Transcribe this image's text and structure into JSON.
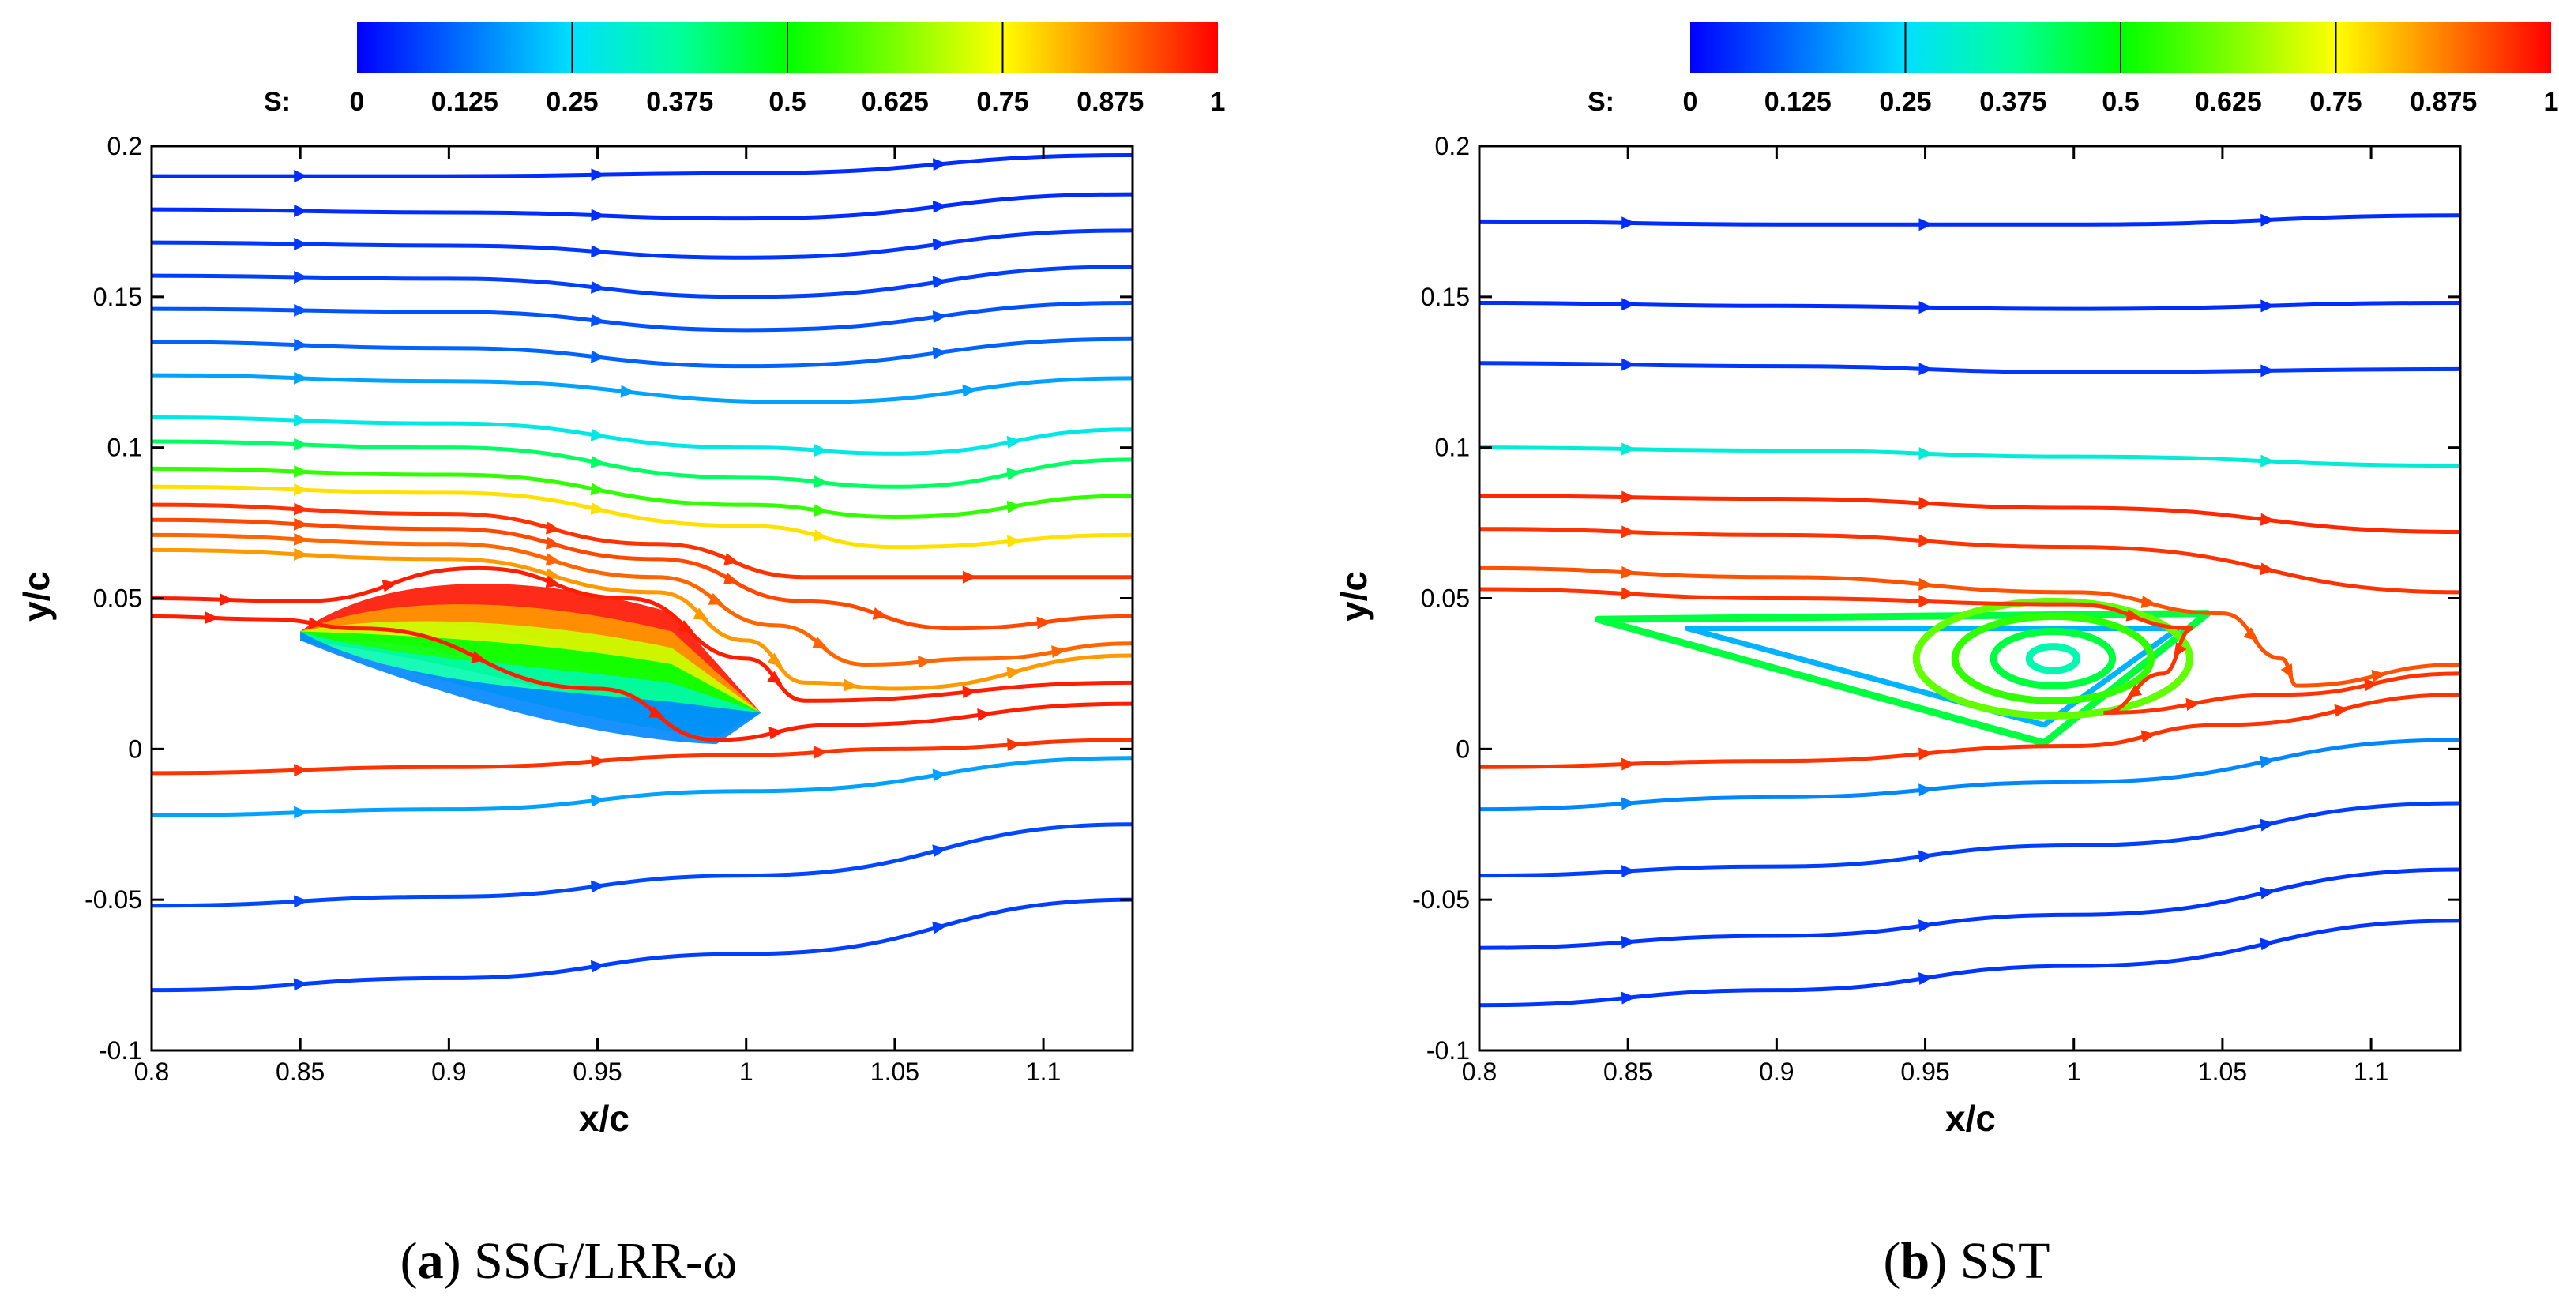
{
  "chart_data": [
    {
      "type": "streamline",
      "panel": "a",
      "caption_letter": "a",
      "caption_text": "SSG/LRR-ω",
      "xlabel": "x/c",
      "ylabel": "y/c",
      "xlim": [
        0.8,
        1.13
      ],
      "ylim": [
        -0.1,
        0.2
      ],
      "xticks": [
        0.8,
        0.85,
        0.9,
        0.95,
        1,
        1.05,
        1.1
      ],
      "xtick_labels": [
        "0.8",
        "0.85",
        "0.9",
        "0.95",
        "1",
        "1.05",
        "1.1"
      ],
      "yticks": [
        -0.1,
        -0.05,
        0,
        0.05,
        0.1,
        0.15,
        0.2
      ],
      "ytick_labels": [
        "-0.1",
        "-0.05",
        "0",
        "0.05",
        "0.1",
        "0.15",
        "0.2"
      ],
      "colorbar": {
        "label": "S:",
        "range": [
          0,
          1
        ],
        "ticks": [
          0,
          0.125,
          0.25,
          0.375,
          0.5,
          0.625,
          0.75,
          0.875,
          1
        ],
        "tick_labels": [
          "0",
          "0.125",
          "0.25",
          "0.375",
          "0.5",
          "0.625",
          "0.75",
          "0.875",
          "1"
        ],
        "contour_lines": [
          0.25,
          0.5,
          0.75
        ]
      },
      "streamlines": [
        {
          "s": 0.05,
          "pts": [
            [
              0.8,
              0.19
            ],
            [
              0.9,
              0.19
            ],
            [
              1.0,
              0.191
            ],
            [
              1.13,
              0.197
            ]
          ]
        },
        {
          "s": 0.05,
          "pts": [
            [
              0.8,
              0.179
            ],
            [
              0.9,
              0.178
            ],
            [
              1.0,
              0.176
            ],
            [
              1.13,
              0.184
            ]
          ]
        },
        {
          "s": 0.06,
          "pts": [
            [
              0.8,
              0.168
            ],
            [
              0.9,
              0.167
            ],
            [
              1.0,
              0.163
            ],
            [
              1.13,
              0.172
            ]
          ]
        },
        {
          "s": 0.07,
          "pts": [
            [
              0.8,
              0.157
            ],
            [
              0.9,
              0.156
            ],
            [
              1.0,
              0.15
            ],
            [
              1.13,
              0.16
            ]
          ]
        },
        {
          "s": 0.09,
          "pts": [
            [
              0.8,
              0.146
            ],
            [
              0.9,
              0.145
            ],
            [
              1.0,
              0.139
            ],
            [
              1.13,
              0.148
            ]
          ]
        },
        {
          "s": 0.11,
          "pts": [
            [
              0.8,
              0.135
            ],
            [
              0.9,
              0.133
            ],
            [
              1.0,
              0.127
            ],
            [
              1.13,
              0.136
            ]
          ]
        },
        {
          "s": 0.18,
          "pts": [
            [
              0.8,
              0.124
            ],
            [
              0.9,
              0.122
            ],
            [
              1.02,
              0.115
            ],
            [
              1.13,
              0.123
            ]
          ]
        },
        {
          "s": 0.28,
          "pts": [
            [
              0.8,
              0.11
            ],
            [
              0.9,
              0.108
            ],
            [
              1.0,
              0.1
            ],
            [
              1.05,
              0.098
            ],
            [
              1.13,
              0.106
            ]
          ]
        },
        {
          "s": 0.42,
          "pts": [
            [
              0.8,
              0.102
            ],
            [
              0.9,
              0.1
            ],
            [
              1.0,
              0.09
            ],
            [
              1.05,
              0.087
            ],
            [
              1.13,
              0.096
            ]
          ]
        },
        {
          "s": 0.55,
          "pts": [
            [
              0.8,
              0.093
            ],
            [
              0.9,
              0.091
            ],
            [
              1.0,
              0.081
            ],
            [
              1.05,
              0.077
            ],
            [
              1.13,
              0.084
            ]
          ]
        },
        {
          "s": 0.78,
          "pts": [
            [
              0.8,
              0.087
            ],
            [
              0.9,
              0.085
            ],
            [
              1.0,
              0.074
            ],
            [
              1.05,
              0.067
            ],
            [
              1.13,
              0.071
            ]
          ]
        },
        {
          "s": 0.95,
          "pts": [
            [
              0.8,
              0.081
            ],
            [
              0.9,
              0.078
            ],
            [
              0.97,
              0.068
            ],
            [
              1.02,
              0.057
            ],
            [
              1.13,
              0.057
            ]
          ]
        },
        {
          "s": 0.93,
          "pts": [
            [
              0.8,
              0.076
            ],
            [
              0.9,
              0.073
            ],
            [
              0.97,
              0.063
            ],
            [
              1.02,
              0.049
            ],
            [
              1.07,
              0.04
            ],
            [
              1.13,
              0.044
            ]
          ]
        },
        {
          "s": 0.9,
          "pts": [
            [
              0.8,
              0.071
            ],
            [
              0.9,
              0.068
            ],
            [
              0.97,
              0.057
            ],
            [
              1.01,
              0.041
            ],
            [
              1.04,
              0.028
            ],
            [
              1.08,
              0.03
            ],
            [
              1.13,
              0.035
            ]
          ]
        },
        {
          "s": 0.85,
          "pts": [
            [
              0.8,
              0.066
            ],
            [
              0.9,
              0.063
            ],
            [
              0.97,
              0.052
            ],
            [
              1.0,
              0.036
            ],
            [
              1.02,
              0.022
            ],
            [
              1.05,
              0.02
            ],
            [
              1.13,
              0.031
            ]
          ]
        },
        {
          "s": 0.97,
          "pts": [
            [
              0.8,
              0.05
            ],
            [
              0.85,
              0.049
            ],
            [
              0.91,
              0.06
            ],
            [
              0.96,
              0.05
            ],
            [
              1.0,
              0.03
            ],
            [
              1.02,
              0.016
            ],
            [
              1.13,
              0.022
            ]
          ]
        },
        {
          "s": 0.97,
          "pts": [
            [
              0.8,
              0.044
            ],
            [
              0.84,
              0.043
            ],
            [
              0.87,
              0.04
            ],
            [
              0.95,
              0.02
            ],
            [
              0.99,
              0.003
            ],
            [
              1.03,
              0.008
            ],
            [
              1.13,
              0.015
            ]
          ]
        },
        {
          "s": 0.95,
          "pts": [
            [
              0.8,
              -0.008
            ],
            [
              0.9,
              -0.006
            ],
            [
              1.0,
              -0.002
            ],
            [
              1.05,
              0.0
            ],
            [
              1.13,
              0.003
            ]
          ]
        },
        {
          "s": 0.18,
          "pts": [
            [
              0.8,
              -0.022
            ],
            [
              0.9,
              -0.02
            ],
            [
              1.0,
              -0.014
            ],
            [
              1.13,
              -0.003
            ]
          ]
        },
        {
          "s": 0.08,
          "pts": [
            [
              0.8,
              -0.052
            ],
            [
              0.9,
              -0.049
            ],
            [
              1.0,
              -0.042
            ],
            [
              1.13,
              -0.025
            ]
          ]
        },
        {
          "s": 0.07,
          "pts": [
            [
              0.8,
              -0.08
            ],
            [
              0.9,
              -0.076
            ],
            [
              1.0,
              -0.068
            ],
            [
              1.13,
              -0.05
            ]
          ]
        }
      ],
      "separation_bubble": {
        "x_start": 0.85,
        "x_end": 1.005,
        "y_top": 0.058,
        "y_bottom": 0.0
      }
    },
    {
      "type": "streamline",
      "panel": "b",
      "caption_letter": "b",
      "caption_text": "SST",
      "xlabel": "x/c",
      "ylabel": "y/c",
      "xlim": [
        0.8,
        1.13
      ],
      "ylim": [
        -0.1,
        0.2
      ],
      "xticks": [
        0.8,
        0.85,
        0.9,
        0.95,
        1,
        1.05,
        1.1
      ],
      "xtick_labels": [
        "0.8",
        "0.85",
        "0.9",
        "0.95",
        "1",
        "1.05",
        "1.1"
      ],
      "yticks": [
        -0.1,
        -0.05,
        0,
        0.05,
        0.1,
        0.15,
        0.2
      ],
      "ytick_labels": [
        "-0.1",
        "-0.05",
        "0",
        "0.05",
        "0.1",
        "0.15",
        "0.2"
      ],
      "colorbar": {
        "label": "S:",
        "range": [
          0,
          1
        ],
        "ticks": [
          0,
          0.125,
          0.25,
          0.375,
          0.5,
          0.625,
          0.75,
          0.875,
          1
        ],
        "tick_labels": [
          "0",
          "0.125",
          "0.25",
          "0.375",
          "0.5",
          "0.625",
          "0.75",
          "0.875",
          "1"
        ],
        "contour_lines": [
          0.25,
          0.5,
          0.75
        ]
      },
      "streamlines": [
        {
          "s": 0.05,
          "pts": [
            [
              0.8,
              0.175
            ],
            [
              0.9,
              0.174
            ],
            [
              1.0,
              0.174
            ],
            [
              1.13,
              0.177
            ]
          ]
        },
        {
          "s": 0.05,
          "pts": [
            [
              0.8,
              0.148
            ],
            [
              0.9,
              0.147
            ],
            [
              1.0,
              0.146
            ],
            [
              1.13,
              0.148
            ]
          ]
        },
        {
          "s": 0.06,
          "pts": [
            [
              0.8,
              0.128
            ],
            [
              0.9,
              0.127
            ],
            [
              1.0,
              0.125
            ],
            [
              1.13,
              0.126
            ]
          ]
        },
        {
          "s": 0.3,
          "pts": [
            [
              0.8,
              0.1
            ],
            [
              0.9,
              0.099
            ],
            [
              1.0,
              0.097
            ],
            [
              1.13,
              0.094
            ]
          ]
        },
        {
          "s": 0.96,
          "pts": [
            [
              0.8,
              0.084
            ],
            [
              0.9,
              0.083
            ],
            [
              1.0,
              0.08
            ],
            [
              1.13,
              0.072
            ]
          ]
        },
        {
          "s": 0.95,
          "pts": [
            [
              0.8,
              0.073
            ],
            [
              0.9,
              0.071
            ],
            [
              1.0,
              0.067
            ],
            [
              1.13,
              0.052
            ]
          ]
        },
        {
          "s": 0.92,
          "pts": [
            [
              0.8,
              0.06
            ],
            [
              0.9,
              0.057
            ],
            [
              1.0,
              0.052
            ],
            [
              1.05,
              0.045
            ],
            [
              1.07,
              0.03
            ],
            [
              1.075,
              0.021
            ],
            [
              1.13,
              0.028
            ]
          ]
        },
        {
          "s": 0.95,
          "pts": [
            [
              0.8,
              0.053
            ],
            [
              0.9,
              0.05
            ],
            [
              1.0,
              0.048
            ],
            [
              1.04,
              0.04
            ],
            [
              1.03,
              0.025
            ],
            [
              1.01,
              0.012
            ],
            [
              1.07,
              0.018
            ],
            [
              1.13,
              0.025
            ]
          ]
        },
        {
          "s": 0.95,
          "pts": [
            [
              0.8,
              -0.006
            ],
            [
              0.9,
              -0.004
            ],
            [
              1.0,
              0.001
            ],
            [
              1.05,
              0.008
            ],
            [
              1.13,
              0.018
            ]
          ]
        },
        {
          "s": 0.15,
          "pts": [
            [
              0.8,
              -0.02
            ],
            [
              0.9,
              -0.016
            ],
            [
              1.0,
              -0.011
            ],
            [
              1.13,
              0.003
            ]
          ]
        },
        {
          "s": 0.07,
          "pts": [
            [
              0.8,
              -0.042
            ],
            [
              0.9,
              -0.039
            ],
            [
              1.0,
              -0.032
            ],
            [
              1.13,
              -0.018
            ]
          ]
        },
        {
          "s": 0.06,
          "pts": [
            [
              0.8,
              -0.066
            ],
            [
              0.9,
              -0.062
            ],
            [
              1.0,
              -0.055
            ],
            [
              1.13,
              -0.04
            ]
          ]
        },
        {
          "s": 0.06,
          "pts": [
            [
              0.8,
              -0.085
            ],
            [
              0.9,
              -0.08
            ],
            [
              1.0,
              -0.072
            ],
            [
              1.13,
              -0.057
            ]
          ]
        }
      ],
      "recirculation_vortex": {
        "center": [
          0.993,
          0.03
        ],
        "loops": [
          {
            "s": 0.35,
            "rx": 0.008,
            "ry": 0.004
          },
          {
            "s": 0.45,
            "rx": 0.02,
            "ry": 0.009
          },
          {
            "s": 0.55,
            "rx": 0.033,
            "ry": 0.014
          },
          {
            "s": 0.6,
            "rx": 0.046,
            "ry": 0.019
          }
        ],
        "triangle": [
          [
            0.84,
            0.043
          ],
          [
            1.045,
            0.045
          ],
          [
            0.99,
            0.002
          ]
        ]
      }
    }
  ]
}
